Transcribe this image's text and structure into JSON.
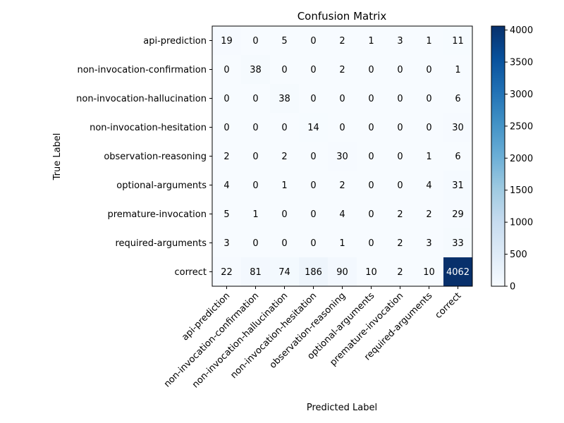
{
  "chart_data": {
    "type": "heatmap",
    "title": "Confusion Matrix",
    "xlabel": "Predicted Label",
    "ylabel": "True Label",
    "labels": [
      "api-prediction",
      "non-invocation-confirmation",
      "non-invocation-hallucination",
      "non-invocation-hesitation",
      "observation-reasoning",
      "optional-arguments",
      "premature-invocation",
      "required-arguments",
      "correct"
    ],
    "matrix": [
      [
        19,
        0,
        5,
        0,
        2,
        1,
        3,
        1,
        11
      ],
      [
        0,
        38,
        0,
        0,
        2,
        0,
        0,
        0,
        1
      ],
      [
        0,
        0,
        38,
        0,
        0,
        0,
        0,
        0,
        6
      ],
      [
        0,
        0,
        0,
        14,
        0,
        0,
        0,
        0,
        30
      ],
      [
        2,
        0,
        2,
        0,
        30,
        0,
        0,
        1,
        6
      ],
      [
        4,
        0,
        1,
        0,
        2,
        0,
        0,
        4,
        31
      ],
      [
        5,
        1,
        0,
        0,
        4,
        0,
        2,
        2,
        29
      ],
      [
        3,
        0,
        0,
        0,
        1,
        0,
        2,
        3,
        33
      ],
      [
        22,
        81,
        74,
        186,
        90,
        10,
        2,
        10,
        4062
      ]
    ],
    "colorbar": {
      "min": 0,
      "max": 4062,
      "ticks": [
        0,
        500,
        1000,
        1500,
        2000,
        2500,
        3000,
        3500,
        4000
      ],
      "colormap": "Blues"
    }
  }
}
